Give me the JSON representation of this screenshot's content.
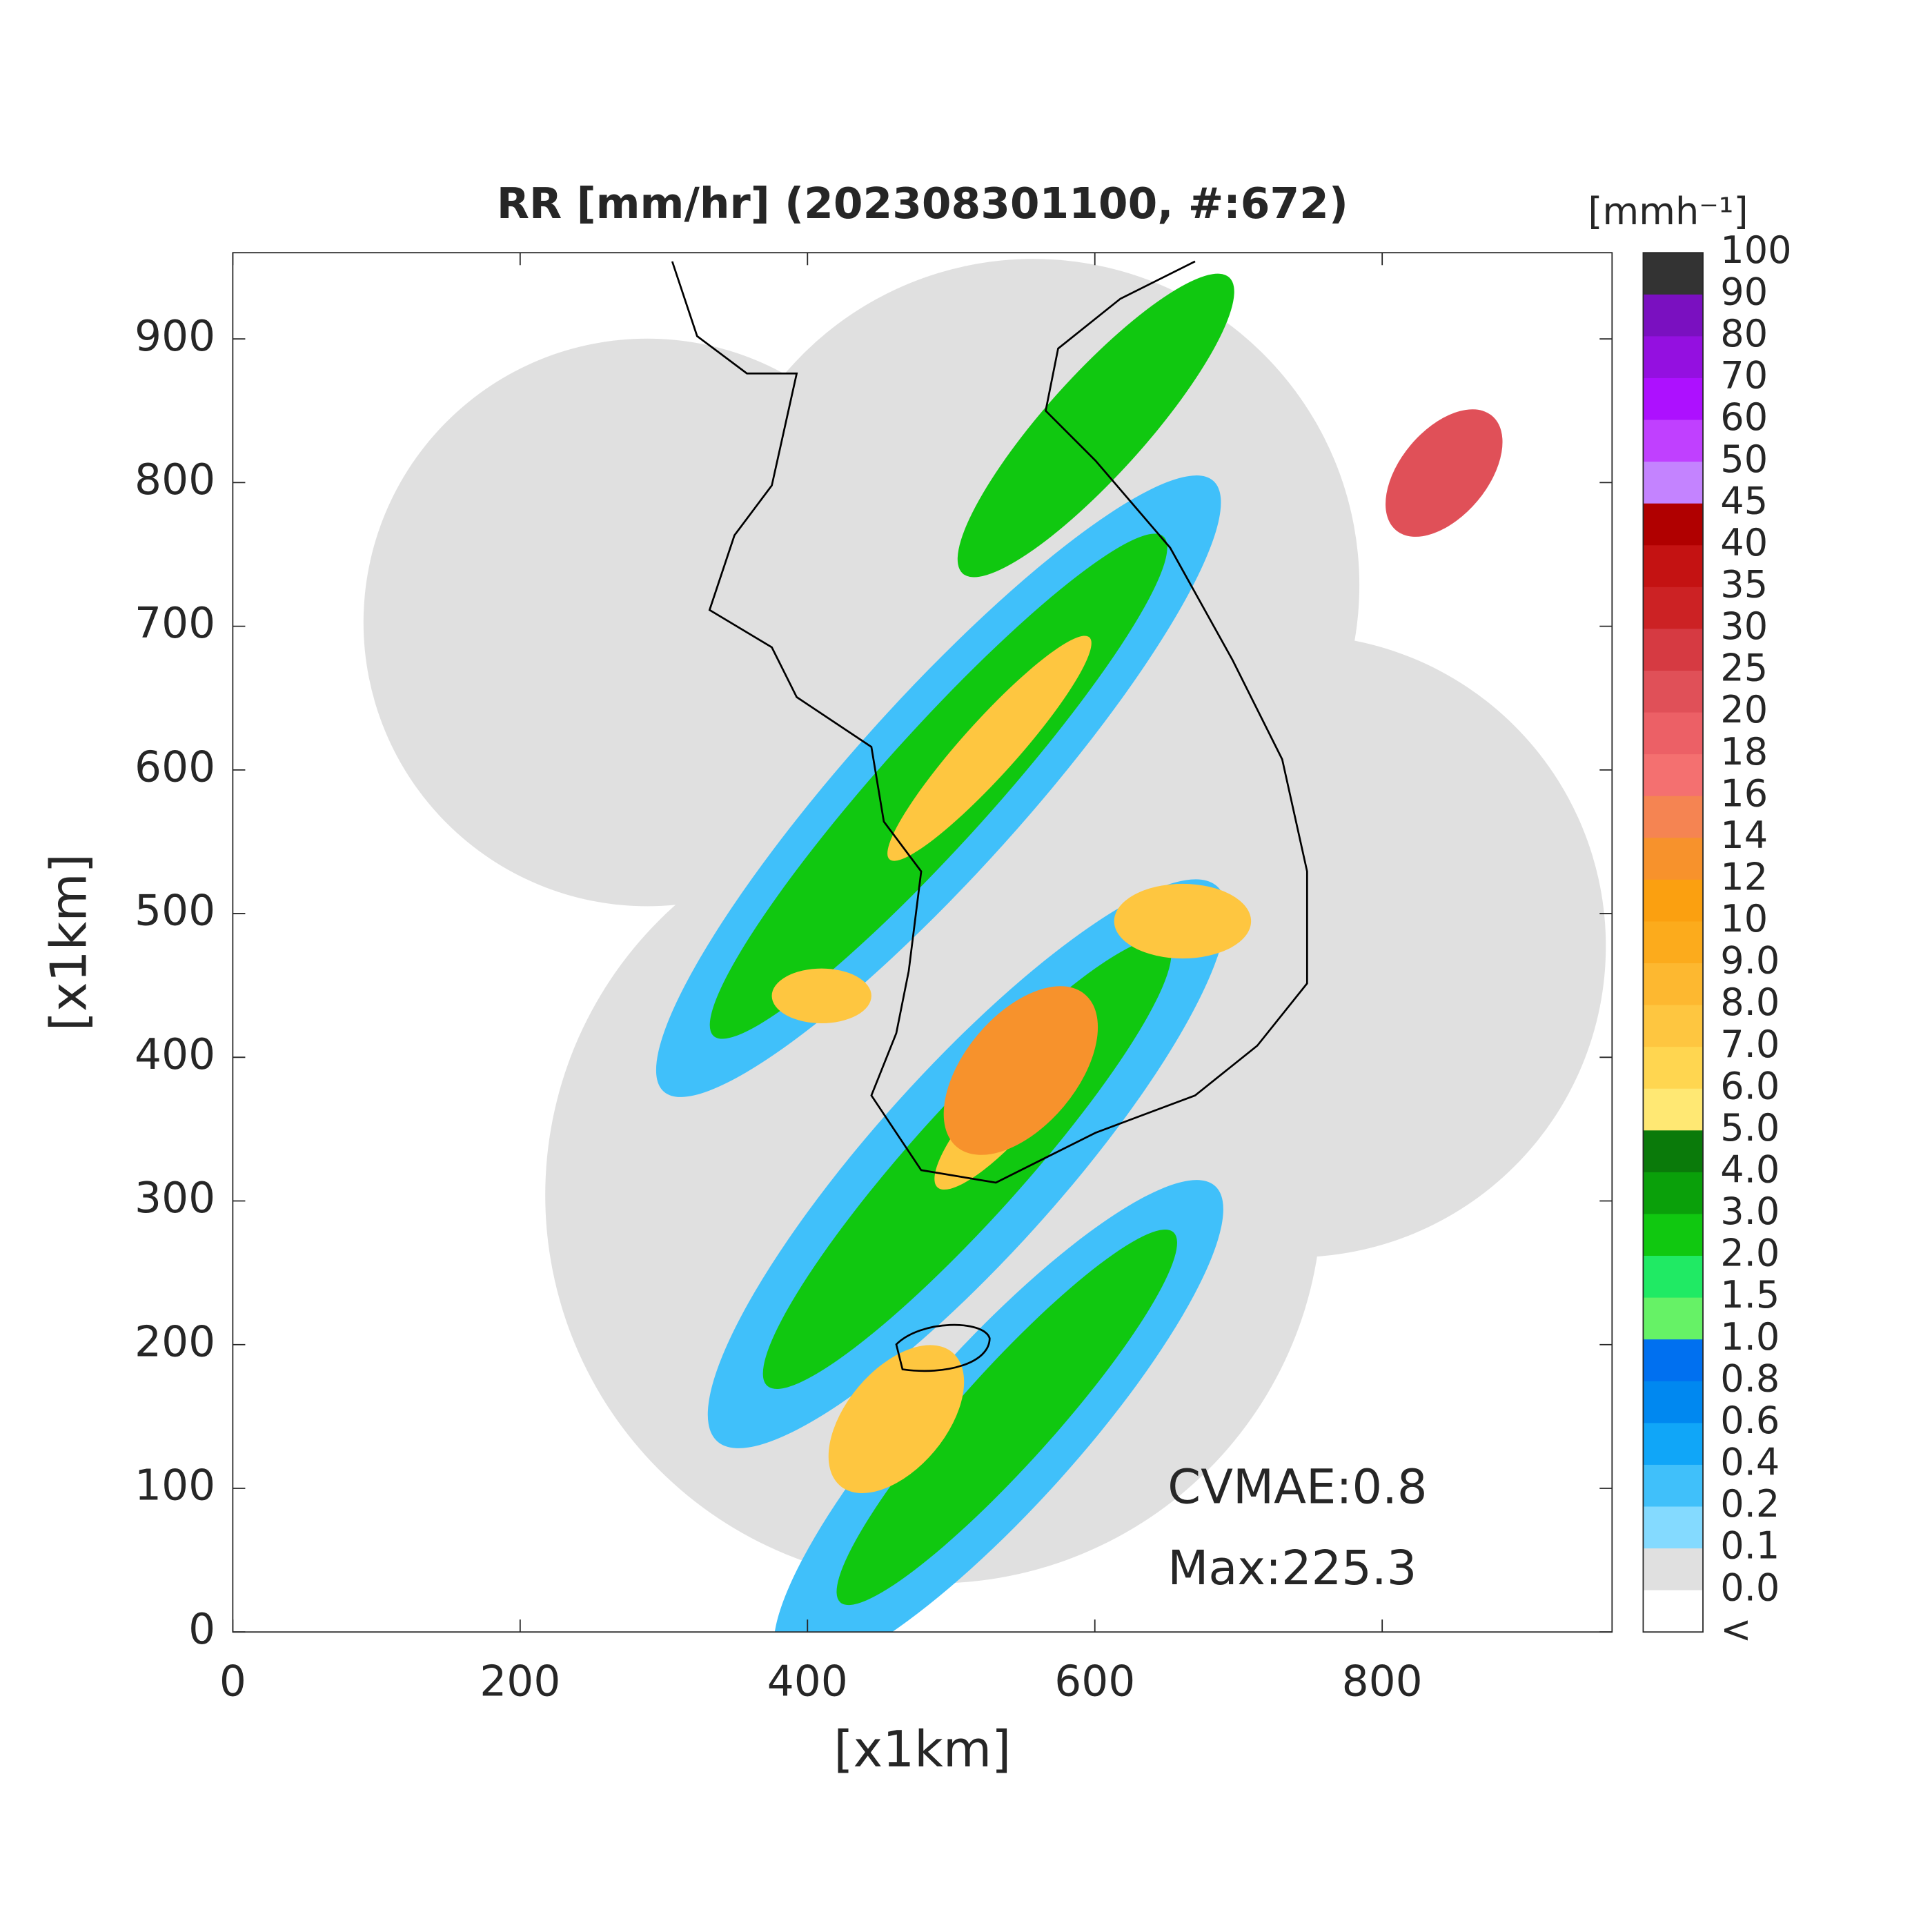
{
  "chart_data": {
    "type": "map",
    "title": "RR [mm/hr] (202308301100, #:672)",
    "x_label": "[x1km]",
    "y_label": "[x1km]",
    "xlim": [
      0,
      960
    ],
    "ylim": [
      0,
      960
    ],
    "xticks": [
      0,
      200,
      400,
      600,
      800
    ],
    "yticks": [
      0,
      100,
      200,
      300,
      400,
      500,
      600,
      700,
      800,
      900
    ],
    "annotations": [
      "CVMAE:0.8",
      "Max:225.3"
    ],
    "colorbar": {
      "title": "[mmh⁻¹]",
      "labels": [
        "100",
        "90",
        "80",
        "70",
        "60",
        "50",
        "45",
        "40",
        "35",
        "30",
        "25",
        "20",
        "18",
        "16",
        "14",
        "12",
        "10",
        "9.0",
        "8.0",
        "7.0",
        "6.0",
        "5.0",
        "4.0",
        "3.0",
        "2.0",
        "1.5",
        "1.0",
        "0.8",
        "0.6",
        "0.4",
        "0.2",
        "0.1",
        "0.0",
        "<"
      ],
      "colors": [
        "#333333",
        "#7a10c0",
        "#9410e0",
        "#ad10ff",
        "#c040ff",
        "#c483ff",
        "#b00000",
        "#c41212",
        "#cc2224",
        "#d63a42",
        "#e05058",
        "#ec6066",
        "#f47070",
        "#f58452",
        "#f7922c",
        "#fba010",
        "#fcab1c",
        "#fdb830",
        "#fec640",
        "#ffd650",
        "#ffe873",
        "#0a7a0a",
        "#0aa00a",
        "#10c810",
        "#20ea64",
        "#66f266",
        "#0070f0",
        "#0088f0",
        "#10a6f8",
        "#40c0fa",
        "#84daff",
        "#e0e0e0",
        "#ffffff"
      ]
    }
  }
}
